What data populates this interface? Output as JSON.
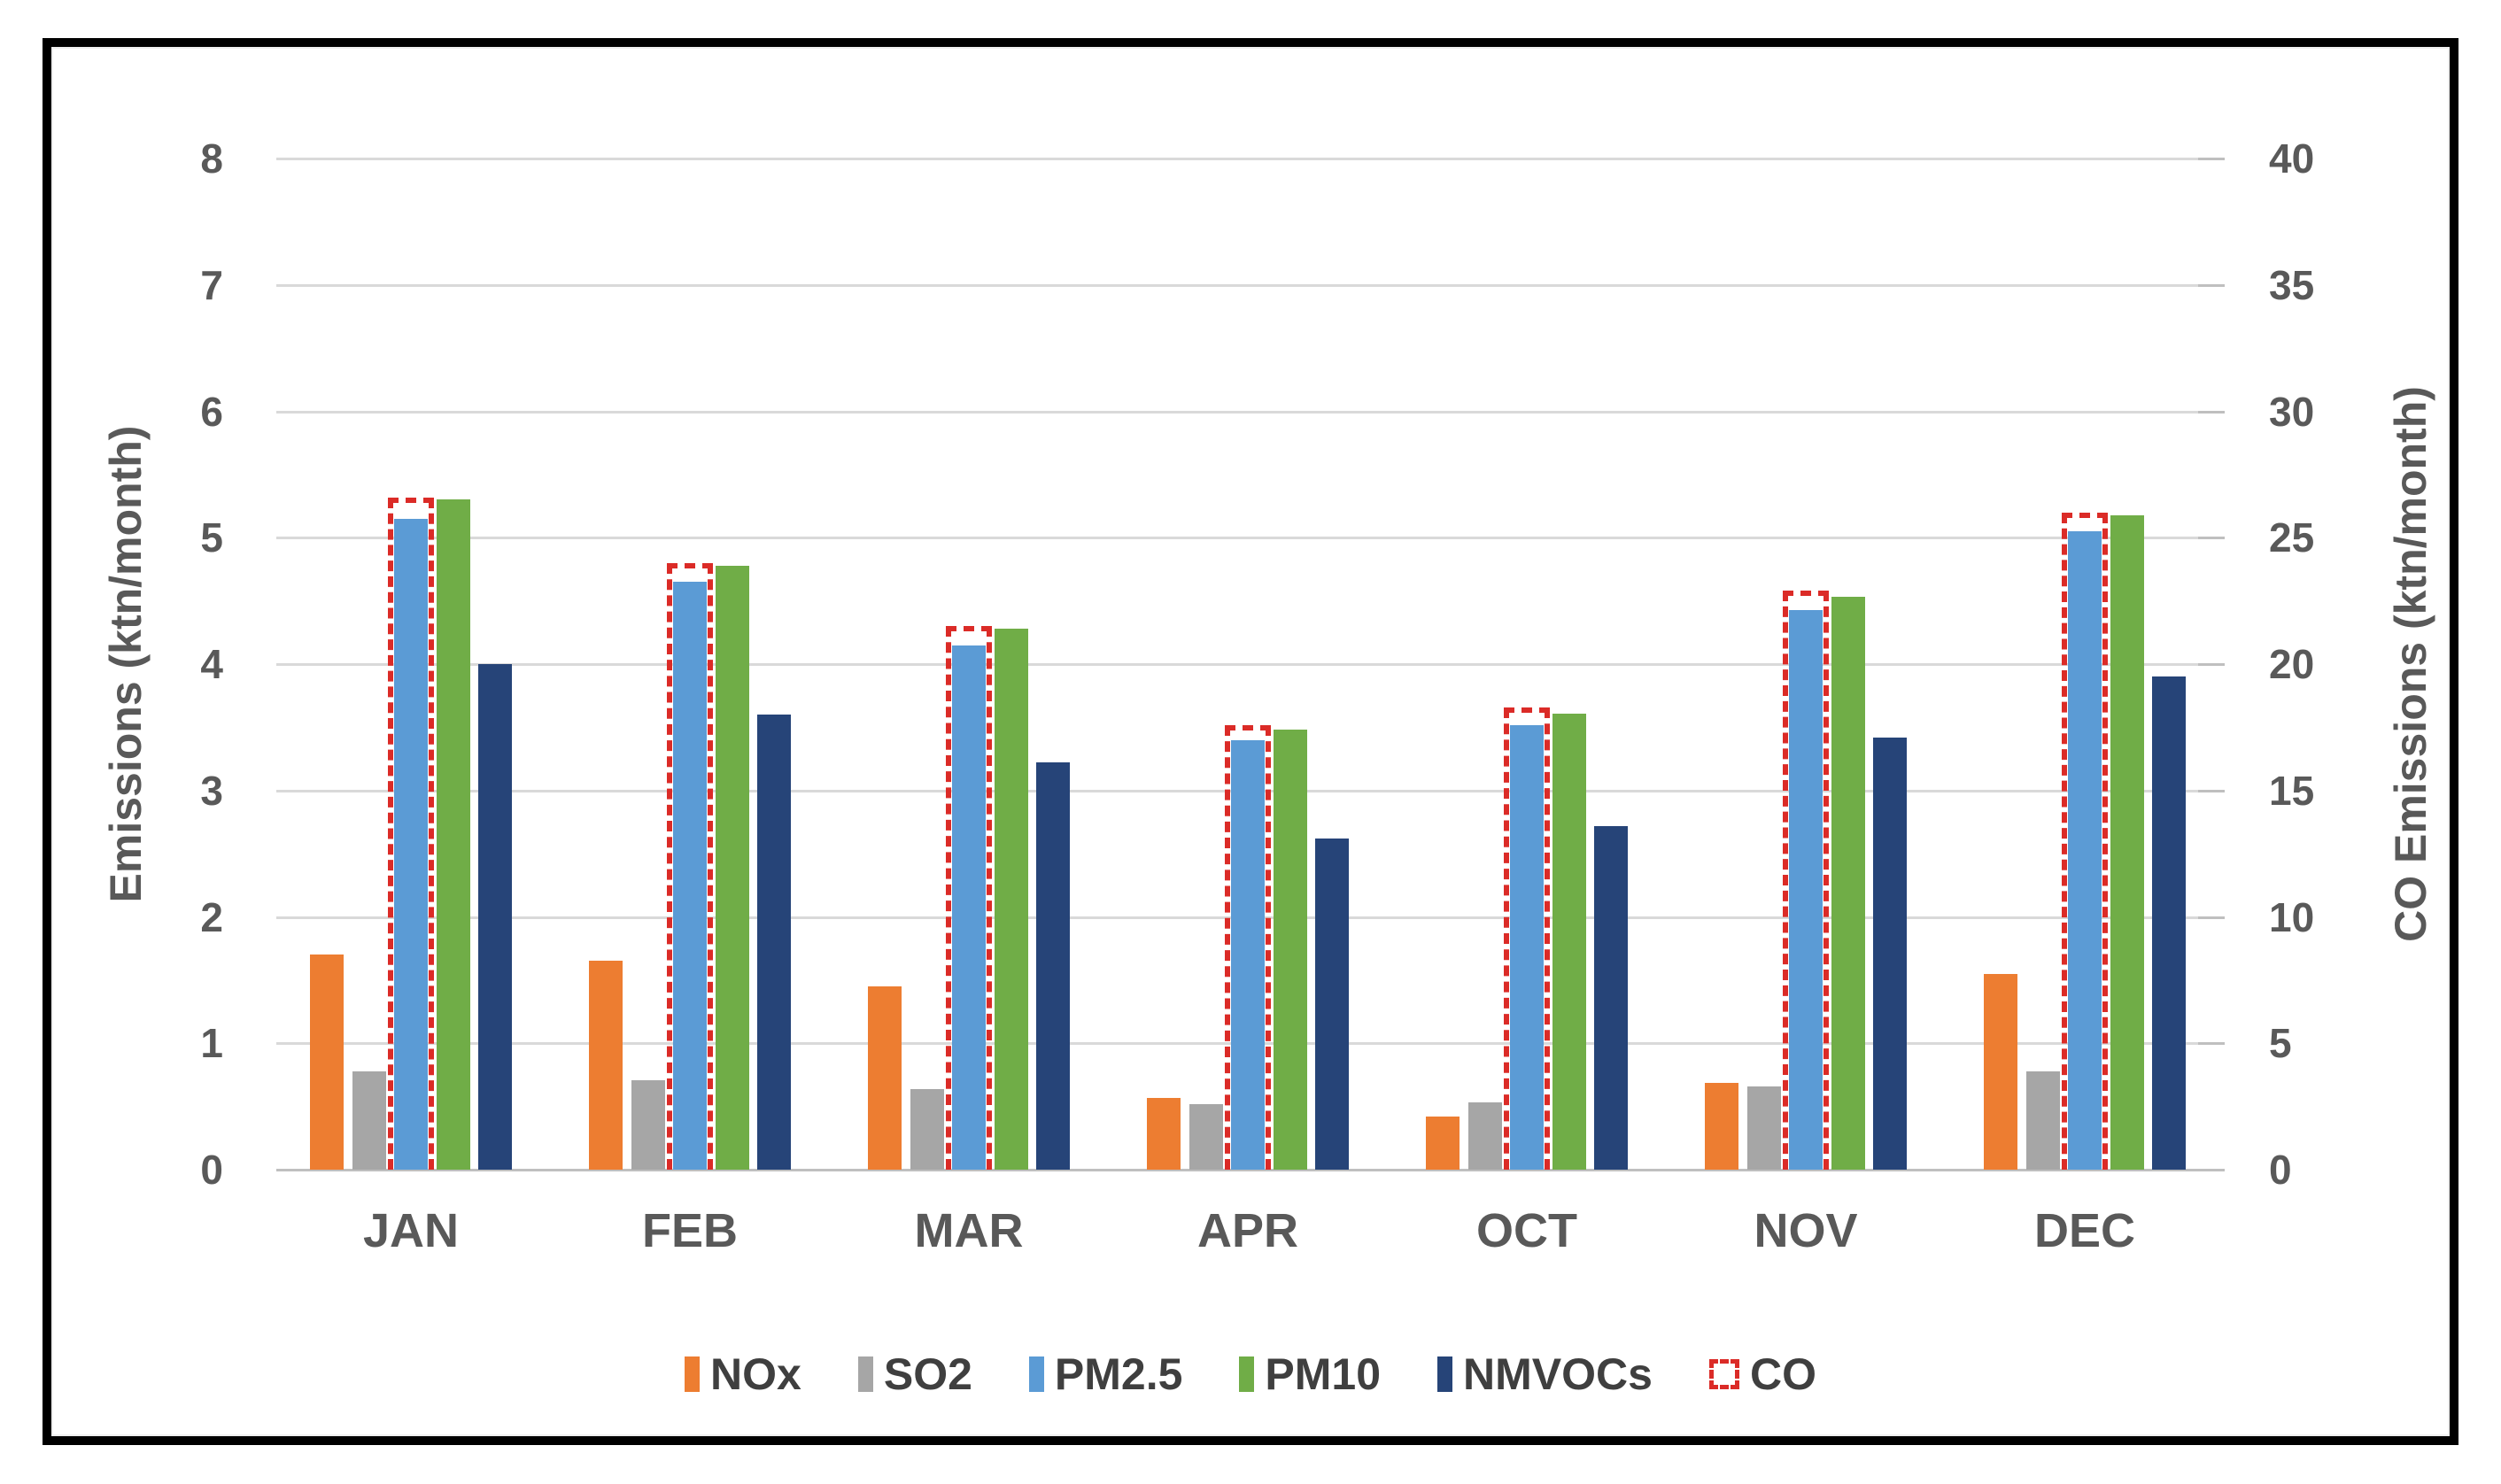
{
  "chart_data": {
    "type": "bar",
    "title": "",
    "categories": [
      "JAN",
      "FEB",
      "MAR",
      "APR",
      "OCT",
      "NOV",
      "DEC"
    ],
    "series": [
      {
        "name": "NOx",
        "color": "#ED7D31",
        "axis": "left",
        "values": [
          1.7,
          1.65,
          1.45,
          0.57,
          0.42,
          0.69,
          1.55
        ]
      },
      {
        "name": "SO2",
        "color": "#A6A6A6",
        "axis": "left",
        "values": [
          0.78,
          0.71,
          0.64,
          0.52,
          0.53,
          0.66,
          0.78
        ]
      },
      {
        "name": "PM2.5",
        "color": "#5B9BD5",
        "axis": "left",
        "values": [
          5.15,
          4.65,
          4.15,
          3.4,
          3.52,
          4.43,
          5.05
        ]
      },
      {
        "name": "PM10",
        "color": "#70AD47",
        "axis": "left",
        "values": [
          5.3,
          4.78,
          4.28,
          3.48,
          3.61,
          4.53,
          5.18
        ]
      },
      {
        "name": "NMVOCs",
        "color": "#264478",
        "axis": "left",
        "values": [
          4.0,
          3.6,
          3.22,
          2.62,
          2.72,
          3.42,
          3.9
        ]
      }
    ],
    "co_series": {
      "name": "CO",
      "style": "dashed-outline",
      "color": "#DB2B27",
      "axis": "right",
      "values": [
        26.6,
        24.0,
        21.5,
        17.6,
        18.3,
        22.9,
        26.0
      ]
    },
    "left_axis": {
      "label": "Emissions (ktn/month)",
      "min": 0,
      "max": 8,
      "tick_step": 1,
      "ticks": [
        0,
        1,
        2,
        3,
        4,
        5,
        6,
        7,
        8
      ]
    },
    "right_axis": {
      "label": "CO Emissions (ktn/month)",
      "min": 0,
      "max": 40,
      "tick_step": 5,
      "ticks": [
        0,
        5,
        10,
        15,
        20,
        25,
        30,
        35,
        40
      ]
    },
    "grid": true,
    "legend_position": "bottom",
    "legend": [
      "NOx",
      "SO2",
      "PM2.5",
      "PM10",
      "NMVOCs",
      "CO"
    ]
  },
  "colors": {
    "tick_text": "#595959",
    "month_text": "#595959",
    "axis_title_text": "#595959",
    "legend_text": "#3F3F3F",
    "gridline": "#D9D9D9",
    "axis_line": "#BFBFBF",
    "frame_border": "#000000",
    "background": "#FFFFFF"
  }
}
